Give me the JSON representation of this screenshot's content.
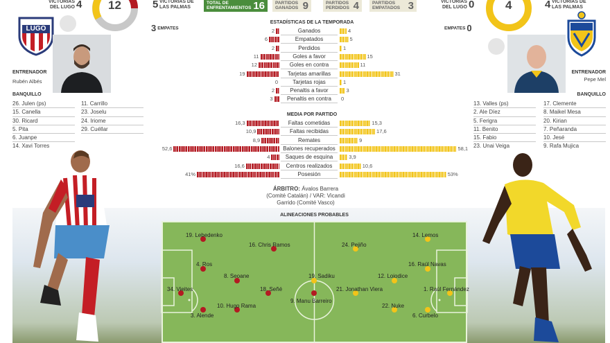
{
  "header": {
    "victorias_lugo_left": {
      "label": "VICTORIAS DEL LUGO",
      "value": "4"
    },
    "total_circle_left": "12",
    "victorias_laspalmas_left": {
      "label": "VICTORIAS DE LAS PALMAS",
      "value": "5"
    },
    "boxes": [
      {
        "label": "TOTAL DE ENFRENTAMIENTOS",
        "value": "16"
      },
      {
        "label": "PARTIDOS GANADOS",
        "value": "9"
      },
      {
        "label": "PARTIDOS PERDIDOS",
        "value": "4"
      },
      {
        "label": "PARTIDOS EMPATADOS",
        "value": "3"
      }
    ],
    "victorias_lugo_right": {
      "label": "VICTORIAS DEL LUGO",
      "value": "0"
    },
    "total_circle_right": "4",
    "victorias_laspalmas_right": {
      "label": "VICTORIAS DE LAS PALMAS",
      "value": "4"
    }
  },
  "home": {
    "empates_value": "3",
    "empates_label": "EMPATES",
    "crest_text": "LUGO",
    "coach_label": "ENTRENADOR",
    "coach_name": "Rubén Albés",
    "bench_label": "BANQUILLO",
    "bench_col1": [
      "26. Julen (ps)",
      "15. Canella",
      "30. Ricard",
      "5. Pita",
      "6. Juanpe",
      "14. Xavi Torres"
    ],
    "bench_col2": [
      "11. Carrillo",
      "23. Joselu",
      "24. Iriome",
      "29. Cuéllar"
    ],
    "color": "#b31a22"
  },
  "away": {
    "empates_label": "EMPATES",
    "empates_value": "0",
    "coach_label": "ENTRENADOR",
    "coach_name": "Pepe Mel",
    "bench_label": "BANQUILLO",
    "bench_col1": [
      "13. Valles (ps)",
      "2. Ale Díez",
      "5. Ferigra",
      "11. Benito",
      "15. Fabio",
      "23. Unai Veiga"
    ],
    "bench_col2": [
      "17. Clemente",
      "8. Maikel Mesa",
      "20. Kirian",
      "7. Peñaranda",
      "10. Jesé",
      "9. Rafa Mujica"
    ],
    "color": "#f2c419"
  },
  "season_stats": {
    "title": "ESTADÍSTICAS DE LA TEMPORADA",
    "rows": [
      {
        "label": "Ganados",
        "home": 2,
        "away": 4
      },
      {
        "label": "Empatados",
        "home": 6,
        "away": 5
      },
      {
        "label": "Perdidos",
        "home": 2,
        "away": 1
      },
      {
        "label": "Goles a favor",
        "home": 11,
        "away": 15
      },
      {
        "label": "Goles en contra",
        "home": 12,
        "away": 11
      },
      {
        "label": "Tarjetas amarillas",
        "home": 19,
        "away": 31
      },
      {
        "label": "Tarjetas rojas",
        "home": 0,
        "away": 1
      },
      {
        "label": "Penaltis a favor",
        "home": 2,
        "away": 3
      },
      {
        "label": "Penaltis en contra",
        "home": 3,
        "away": 0
      }
    ]
  },
  "avg_stats": {
    "title": "MEDIA POR PARTIDO",
    "rows": [
      {
        "label": "Faltas cometidas",
        "home": "16,3",
        "away": "15,3",
        "h": 16.3,
        "a": 15.3
      },
      {
        "label": "Faltas recibidas",
        "home": "10,9",
        "away": "17,6",
        "h": 10.9,
        "a": 17.6
      },
      {
        "label": "Remates",
        "home": "8,9",
        "away": "9",
        "h": 8.9,
        "a": 9
      },
      {
        "label": "Balones recuperados",
        "home": "52,6",
        "away": "58,1",
        "h": 52.6,
        "a": 58.1
      },
      {
        "label": "Saques de esquina",
        "home": "4",
        "away": "3,9",
        "h": 4,
        "a": 3.9
      },
      {
        "label": "Centros realizados",
        "home": "16,6",
        "away": "10,6",
        "h": 16.6,
        "a": 10.6
      },
      {
        "label": "Posesión",
        "home": "41%",
        "away": "53%",
        "h": 41,
        "a": 53
      }
    ]
  },
  "referee": {
    "label": "ÁRBITRO:",
    "text": "Ávalos Barrera (Comité Catalán) / VAR: Vicandi Garrido (Comité Vasco)"
  },
  "lineups": {
    "title": "ALINEACIONES PROBABLES",
    "home_players": [
      {
        "name": "19. Lebedenko"
      },
      {
        "name": "16. Chris Ramos"
      },
      {
        "name": "4. Ros"
      },
      {
        "name": "8. Seoane"
      },
      {
        "name": "34. Vieites"
      },
      {
        "name": "18. Señé"
      },
      {
        "name": "10. Hugo Rama"
      },
      {
        "name": "9. Manu Barreiro"
      },
      {
        "name": "3. Alende"
      }
    ],
    "away_players": [
      {
        "name": "24. Pejiño"
      },
      {
        "name": "14. Lemos"
      },
      {
        "name": "16. Raúl Navas"
      },
      {
        "name": "12. Loiodice"
      },
      {
        "name": "19. Sadiku"
      },
      {
        "name": "21. Jonathan Viera"
      },
      {
        "name": "1. Raúl Fernández"
      },
      {
        "name": "22. Nuke"
      },
      {
        "name": "6. Curbelo"
      }
    ]
  }
}
